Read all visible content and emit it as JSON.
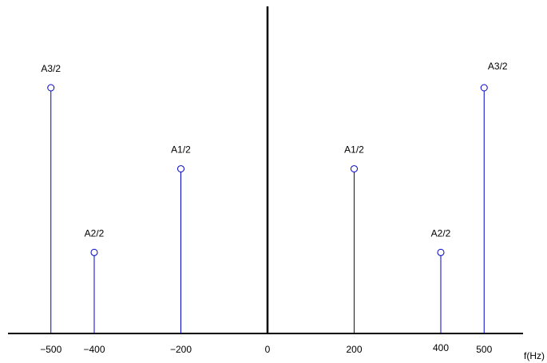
{
  "chart_data": {
    "type": "stem",
    "title": "",
    "xlabel": "f(Hz)",
    "ylabel": "",
    "xlim": [
      -530,
      590
    ],
    "ylim": [
      0,
      1
    ],
    "grid": false,
    "x_ticks": [
      {
        "value": -500,
        "label": "−500"
      },
      {
        "value": -400,
        "label": "−400"
      },
      {
        "value": -200,
        "label": "−200"
      },
      {
        "value": 0,
        "label": "0"
      },
      {
        "value": 200,
        "label": "200"
      },
      {
        "value": 400,
        "label": "400"
      },
      {
        "value": 500,
        "label": "500"
      }
    ],
    "stems": [
      {
        "x": -500,
        "y": 0.97,
        "label": "A3/2"
      },
      {
        "x": -400,
        "y": 0.32,
        "label": "A2/2"
      },
      {
        "x": -200,
        "y": 0.65,
        "label": "A1/2"
      },
      {
        "x": 200,
        "y": 0.65,
        "label": "A1/2"
      },
      {
        "x": 400,
        "y": 0.32,
        "label": "A2/2"
      },
      {
        "x": 500,
        "y": 0.97,
        "label": "A3/2"
      }
    ],
    "colors": {
      "stem": "#0000cc",
      "axis": "#000000"
    }
  }
}
